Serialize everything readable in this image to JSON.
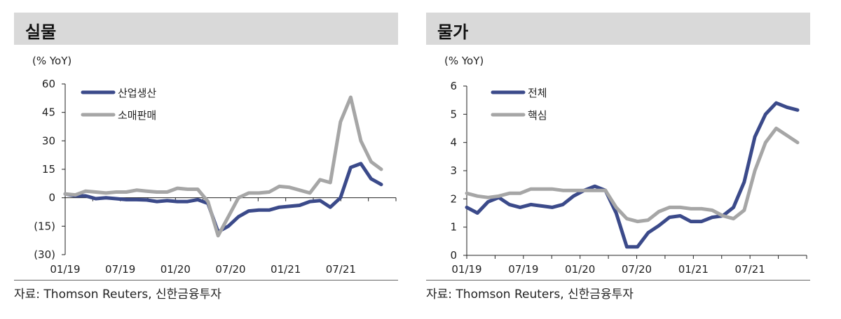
{
  "chart_data": [
    {
      "type": "line",
      "title": "실물",
      "unit_label": "(% YoY)",
      "source": "자료: Thomson Reuters, 신한금융투자",
      "x_ticks": [
        "01/19",
        "07/19",
        "01/20",
        "07/20",
        "01/21",
        "07/21"
      ],
      "y_ticks": [
        "60",
        "45",
        "30",
        "15",
        "0",
        "(15)",
        "(30)"
      ],
      "y_tick_values": [
        60,
        45,
        30,
        15,
        0,
        -15,
        -30
      ],
      "ylim": [
        -30,
        60
      ],
      "x_domain": [
        0,
        31
      ],
      "series": [
        {
          "name": "산업생산",
          "color": "#3b4a8a",
          "points": [
            [
              0,
              2
            ],
            [
              1,
              1
            ],
            [
              2,
              1
            ],
            [
              3,
              -0.5
            ],
            [
              4,
              0
            ],
            [
              5,
              -0.5
            ],
            [
              6,
              -1
            ],
            [
              7,
              -1
            ],
            [
              8,
              -1.2
            ],
            [
              9,
              -2
            ],
            [
              10,
              -1.5
            ],
            [
              11,
              -2
            ],
            [
              12,
              -2
            ],
            [
              13,
              -1
            ],
            [
              14,
              -3
            ],
            [
              15,
              -18
            ],
            [
              16,
              -15
            ],
            [
              17,
              -10
            ],
            [
              18,
              -7
            ],
            [
              19,
              -6.5
            ],
            [
              20,
              -6.5
            ],
            [
              21,
              -5
            ],
            [
              22,
              -4.5
            ],
            [
              23,
              -4
            ],
            [
              24,
              -2
            ],
            [
              25,
              -1.5
            ],
            [
              26,
              -5
            ],
            [
              27,
              0
            ],
            [
              28,
              16
            ],
            [
              29,
              18
            ],
            [
              30,
              10
            ],
            [
              31,
              7
            ]
          ]
        },
        {
          "name": "소매판매",
          "color": "#a6a6a6",
          "points": [
            [
              0,
              2
            ],
            [
              1,
              1.5
            ],
            [
              2,
              3.5
            ],
            [
              3,
              3
            ],
            [
              4,
              2.5
            ],
            [
              5,
              3
            ],
            [
              6,
              3
            ],
            [
              7,
              4
            ],
            [
              8,
              3.5
            ],
            [
              9,
              3
            ],
            [
              10,
              3
            ],
            [
              11,
              5
            ],
            [
              12,
              4.5
            ],
            [
              13,
              4.5
            ],
            [
              14,
              -2
            ],
            [
              15,
              -20
            ],
            [
              16,
              -10
            ],
            [
              17,
              0
            ],
            [
              18,
              2.5
            ],
            [
              19,
              2.5
            ],
            [
              20,
              3
            ],
            [
              21,
              6
            ],
            [
              22,
              5.5
            ],
            [
              23,
              4
            ],
            [
              24,
              2.5
            ],
            [
              25,
              9.5
            ],
            [
              26,
              8
            ],
            [
              27,
              40
            ],
            [
              28,
              53
            ],
            [
              29,
              30
            ],
            [
              30,
              19
            ],
            [
              31,
              15
            ]
          ]
        }
      ]
    },
    {
      "type": "line",
      "title": "물가",
      "unit_label": "(% YoY)",
      "source": "자료: Thomson Reuters, 신한금융투자",
      "x_ticks": [
        "01/19",
        "07/19",
        "01/20",
        "07/20",
        "01/21",
        "07/21"
      ],
      "y_ticks": [
        "6",
        "5",
        "4",
        "3",
        "2",
        "1",
        "0"
      ],
      "y_tick_values": [
        6,
        5,
        4,
        3,
        2,
        1,
        0
      ],
      "ylim": [
        0,
        6
      ],
      "x_domain": [
        0,
        31
      ],
      "series": [
        {
          "name": "전체",
          "color": "#3b4a8a",
          "points": [
            [
              0,
              1.7
            ],
            [
              1,
              1.5
            ],
            [
              2,
              1.9
            ],
            [
              3,
              2.05
            ],
            [
              4,
              1.8
            ],
            [
              5,
              1.7
            ],
            [
              6,
              1.8
            ],
            [
              7,
              1.75
            ],
            [
              8,
              1.7
            ],
            [
              9,
              1.8
            ],
            [
              10,
              2.1
            ],
            [
              11,
              2.3
            ],
            [
              12,
              2.45
            ],
            [
              13,
              2.3
            ],
            [
              14,
              1.5
            ],
            [
              15,
              0.3
            ],
            [
              16,
              0.3
            ],
            [
              17,
              0.8
            ],
            [
              18,
              1.05
            ],
            [
              19,
              1.35
            ],
            [
              20,
              1.4
            ],
            [
              21,
              1.2
            ],
            [
              22,
              1.2
            ],
            [
              23,
              1.35
            ],
            [
              24,
              1.4
            ],
            [
              25,
              1.7
            ],
            [
              26,
              2.6
            ],
            [
              27,
              4.2
            ],
            [
              28,
              5.0
            ],
            [
              29,
              5.4
            ],
            [
              30,
              5.25
            ],
            [
              31,
              5.15
            ]
          ]
        },
        {
          "name": "핵심",
          "color": "#a6a6a6",
          "points": [
            [
              0,
              2.2
            ],
            [
              1,
              2.1
            ],
            [
              2,
              2.05
            ],
            [
              3,
              2.1
            ],
            [
              4,
              2.2
            ],
            [
              5,
              2.2
            ],
            [
              6,
              2.35
            ],
            [
              7,
              2.35
            ],
            [
              8,
              2.35
            ],
            [
              9,
              2.3
            ],
            [
              10,
              2.3
            ],
            [
              11,
              2.3
            ],
            [
              12,
              2.3
            ],
            [
              13,
              2.3
            ],
            [
              14,
              1.7
            ],
            [
              15,
              1.3
            ],
            [
              16,
              1.2
            ],
            [
              17,
              1.25
            ],
            [
              18,
              1.55
            ],
            [
              19,
              1.7
            ],
            [
              20,
              1.7
            ],
            [
              21,
              1.65
            ],
            [
              22,
              1.65
            ],
            [
              23,
              1.6
            ],
            [
              24,
              1.4
            ],
            [
              25,
              1.3
            ],
            [
              26,
              1.6
            ],
            [
              27,
              3.0
            ],
            [
              28,
              4.0
            ],
            [
              29,
              4.5
            ],
            [
              30,
              4.25
            ],
            [
              31,
              4.0
            ]
          ]
        }
      ]
    }
  ]
}
